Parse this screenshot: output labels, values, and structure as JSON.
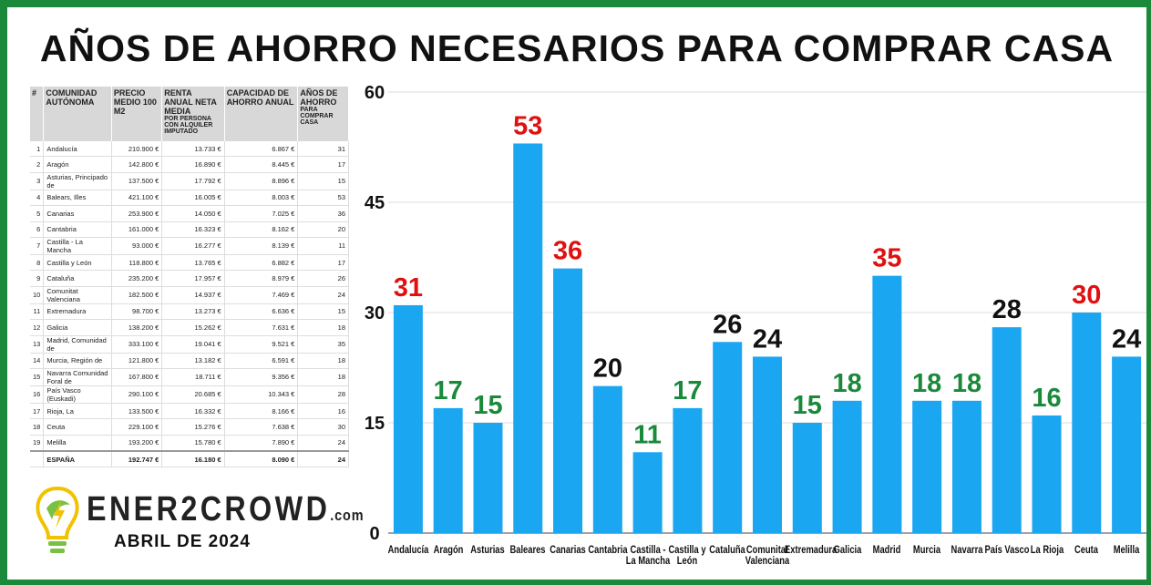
{
  "title": "AÑOS DE AHORRO NECESARIOS PARA COMPRAR CASA",
  "table": {
    "header": [
      "#",
      "COMUNIDAD AUTÓNOMA",
      "PRECIO MEDIO 100 M2",
      {
        "text": "RENTA ANUAL NETA MEDIA",
        "sub": "POR PERSONA CON ALQUILER IMPUTADO"
      },
      "CAPACIDAD DE AHORRO ANUAL",
      {
        "text": "AÑOS DE AHORRO",
        "sub": "PARA COMPRAR CASA"
      }
    ],
    "rows": [
      [
        "1",
        "Andalucía",
        "210.900 €",
        "13.733 €",
        "6.867 €",
        "31"
      ],
      [
        "2",
        "Aragón",
        "142.800 €",
        "16.890 €",
        "8.445 €",
        "17"
      ],
      [
        "3",
        "Asturias, Principado de",
        "137.500 €",
        "17.792 €",
        "8.896 €",
        "15"
      ],
      [
        "4",
        "Balears, Illes",
        "421.100 €",
        "16.005 €",
        "8.003 €",
        "53"
      ],
      [
        "5",
        "Canarias",
        "253.900 €",
        "14.050 €",
        "7.025 €",
        "36"
      ],
      [
        "6",
        "Cantabria",
        "161.000 €",
        "16.323 €",
        "8.162 €",
        "20"
      ],
      [
        "7",
        "Castilla - La Mancha",
        "93.000 €",
        "16.277 €",
        "8.139 €",
        "11"
      ],
      [
        "8",
        "Castilla y León",
        "118.800 €",
        "13.765 €",
        "6.882 €",
        "17"
      ],
      [
        "9",
        "Cataluña",
        "235.200 €",
        "17.957 €",
        "8.979 €",
        "26"
      ],
      [
        "10",
        "Comunitat Valenciana",
        "182.500 €",
        "14.937 €",
        "7.469 €",
        "24"
      ],
      [
        "11",
        "Extremadura",
        "98.700 €",
        "13.273 €",
        "6.636 €",
        "15"
      ],
      [
        "12",
        "Galicia",
        "138.200 €",
        "15.262 €",
        "7.631 €",
        "18"
      ],
      [
        "13",
        "Madrid, Comunidad de",
        "333.100 €",
        "19.041 €",
        "9.521 €",
        "35"
      ],
      [
        "14",
        "Murcia, Región de",
        "121.800 €",
        "13.182 €",
        "6.591 €",
        "18"
      ],
      [
        "15",
        "Navarra Comunidad Foral de",
        "167.800 €",
        "18.711 €",
        "9.356 €",
        "18"
      ],
      [
        "16",
        "País Vasco (Euskadi)",
        "290.100 €",
        "20.685 €",
        "10.343 €",
        "28"
      ],
      [
        "17",
        "Rioja, La",
        "133.500 €",
        "16.332 €",
        "8.166 €",
        "16"
      ],
      [
        "18",
        "Ceuta",
        "229.100 €",
        "15.276 €",
        "7.638 €",
        "30"
      ],
      [
        "19",
        "Melilla",
        "193.200 €",
        "15.780 €",
        "7.890 €",
        "24"
      ]
    ],
    "total": {
      "label": "ESPAÑA",
      "cells": [
        "192.747 €",
        "16.180 €",
        "8.090 €",
        "24"
      ]
    }
  },
  "logo": {
    "name": "ENER2CROWD",
    "suffix": ".com",
    "date": "ABRIL DE 2024"
  },
  "chart_data": {
    "type": "bar",
    "categories": [
      "Andalucía",
      "Aragón",
      "Asturias",
      "Baleares",
      "Canarias",
      "Cantabria",
      "Castilla - La Mancha",
      "Castilla y León",
      "Cataluña",
      "Comunitat Valenciana",
      "Extremadura",
      "Galicia",
      "Madrid",
      "Murcia",
      "Navarra",
      "País Vasco",
      "La Rioja",
      "Ceuta",
      "Melilla"
    ],
    "values": [
      31,
      17,
      15,
      53,
      36,
      20,
      11,
      17,
      26,
      24,
      15,
      18,
      35,
      18,
      18,
      28,
      16,
      30,
      24
    ],
    "value_label_colors": [
      "#e01010",
      "#1a8a3a",
      "#1a8a3a",
      "#e01010",
      "#e01010",
      "#111111",
      "#1a8a3a",
      "#1a8a3a",
      "#111111",
      "#111111",
      "#1a8a3a",
      "#1a8a3a",
      "#e01010",
      "#1a8a3a",
      "#1a8a3a",
      "#111111",
      "#1a8a3a",
      "#e01010",
      "#111111"
    ],
    "color": "#1ba6f2",
    "ylim": [
      0,
      60
    ],
    "yticks": [
      0,
      15,
      30,
      45,
      60
    ],
    "grid": true
  }
}
